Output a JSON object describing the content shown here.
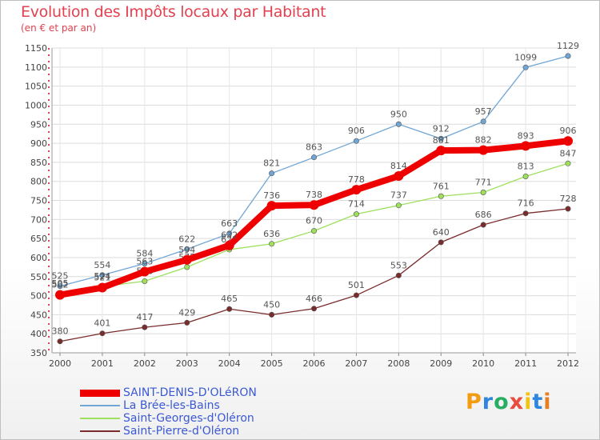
{
  "header": {
    "title": "Evolution des Impôts locaux par Habitant",
    "subtitle": "(en € et par an)"
  },
  "brand": {
    "text": "Proxiti",
    "letter_colors": [
      "#f39c12",
      "#2e86de",
      "#27ae60",
      "#e74c3c",
      "#f1c40f",
      "#2e86de",
      "#e67e22"
    ]
  },
  "chart_data": {
    "type": "line",
    "title": "Evolution des Impôts locaux par Habitant",
    "subtitle": "(en € et par an)",
    "xlabel": "",
    "ylabel": "",
    "categories": [
      "2000",
      "2001",
      "2002",
      "2003",
      "2004",
      "2005",
      "2006",
      "2007",
      "2008",
      "2009",
      "2010",
      "2011",
      "2012"
    ],
    "ylim": [
      350,
      1150
    ],
    "yticks": [
      350,
      400,
      450,
      500,
      550,
      600,
      650,
      700,
      750,
      800,
      850,
      900,
      950,
      1000,
      1050,
      1100,
      1150
    ],
    "grid": true,
    "legend_position": "bottom-left",
    "series": [
      {
        "name": "SAINT-DENIS-D'OLéRON",
        "color": "#ee0000",
        "emphasis": true,
        "values": [
          502,
          521,
          563,
          594,
          632,
          736,
          738,
          778,
          814,
          881,
          882,
          893,
          906
        ]
      },
      {
        "name": "La Brée-les-Bains",
        "color": "#6fa6d6",
        "emphasis": false,
        "values": [
          525,
          554,
          584,
          622,
          663,
          821,
          863,
          906,
          950,
          912,
          957,
          1099,
          1129
        ]
      },
      {
        "name": "Saint-Georges-d'Oléron",
        "color": "#9ee05c",
        "emphasis": false,
        "values": [
          505,
          524,
          538,
          575,
          621,
          636,
          670,
          714,
          737,
          761,
          771,
          813,
          847
        ]
      },
      {
        "name": "Saint-Pierre-d'Oléron",
        "color": "#7a2b2b",
        "emphasis": false,
        "values": [
          380,
          401,
          417,
          429,
          465,
          450,
          466,
          501,
          553,
          640,
          686,
          716,
          728
        ]
      }
    ]
  }
}
